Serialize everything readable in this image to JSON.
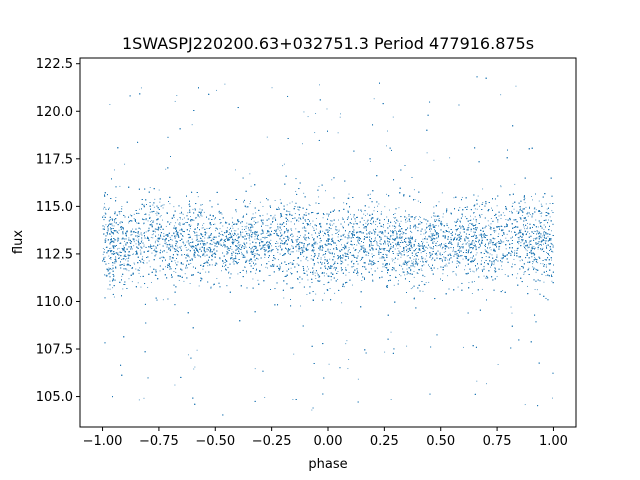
{
  "chart_data": {
    "type": "scatter",
    "title": "1SWASPJ220200.63+032751.3 Period 477916.875s",
    "xlabel": "phase",
    "ylabel": "flux",
    "xlim": [
      -1.1,
      1.1
    ],
    "ylim": [
      103.4,
      122.8
    ],
    "x_ticks": [
      -1.0,
      -0.75,
      -0.5,
      -0.25,
      0.0,
      0.25,
      0.5,
      0.75,
      1.0
    ],
    "x_tick_labels": [
      "−1.00",
      "−0.75",
      "−0.50",
      "−0.25",
      "0.00",
      "0.25",
      "0.50",
      "0.75",
      "1.00"
    ],
    "y_ticks": [
      105.0,
      107.5,
      110.0,
      112.5,
      115.0,
      117.5,
      120.0,
      122.5
    ],
    "y_tick_labels": [
      "105.0",
      "107.5",
      "110.0",
      "112.5",
      "115.0",
      "117.5",
      "120.0",
      "122.5"
    ],
    "grid": false,
    "legend": "none",
    "marker_color": "#1f77b4",
    "series": [
      {
        "x_range": [
          -1.0,
          1.0
        ],
        "y_center": 113.2,
        "y_core_range": [
          110.0,
          116.5
        ],
        "y_full_range": [
          104.0,
          122.0
        ],
        "x": [
          -1.0,
          -0.95,
          -0.9,
          -0.85,
          -0.8,
          -0.75,
          -0.7,
          -0.65,
          -0.6,
          -0.55,
          -0.5,
          -0.45,
          -0.4,
          -0.35,
          -0.3,
          -0.25,
          -0.2,
          -0.15,
          -0.1,
          -0.05,
          0.0,
          0.05,
          0.1,
          0.15,
          0.2,
          0.25,
          0.3,
          0.35,
          0.4,
          0.45,
          0.5,
          0.55,
          0.6,
          0.65,
          0.7,
          0.75,
          0.8,
          0.85,
          0.9,
          0.95,
          1.0
        ],
        "y_mean": [
          113.3,
          113.0,
          112.9,
          113.0,
          113.6,
          113.4,
          112.9,
          113.4,
          113.2,
          113.1,
          113.0,
          112.9,
          113.1,
          113.3,
          113.0,
          113.2,
          113.3,
          113.4,
          113.0,
          112.6,
          112.4,
          112.8,
          113.0,
          113.1,
          113.2,
          113.1,
          113.3,
          113.0,
          112.7,
          113.0,
          113.2,
          112.9,
          113.1,
          113.3,
          113.0,
          113.2,
          113.5,
          113.4,
          113.1,
          113.0,
          113.3
        ],
        "y_spread": [
          1.4,
          1.1,
          1.0,
          1.1,
          1.2,
          1.1,
          1.0,
          1.2,
          1.1,
          1.0,
          1.0,
          1.0,
          1.0,
          1.1,
          1.0,
          1.1,
          1.2,
          1.2,
          1.0,
          1.2,
          1.3,
          1.0,
          1.0,
          1.0,
          1.1,
          1.0,
          1.0,
          1.1,
          1.1,
          1.0,
          1.0,
          1.0,
          1.0,
          1.1,
          1.0,
          1.1,
          1.2,
          1.2,
          1.1,
          1.1,
          1.4
        ]
      }
    ]
  }
}
